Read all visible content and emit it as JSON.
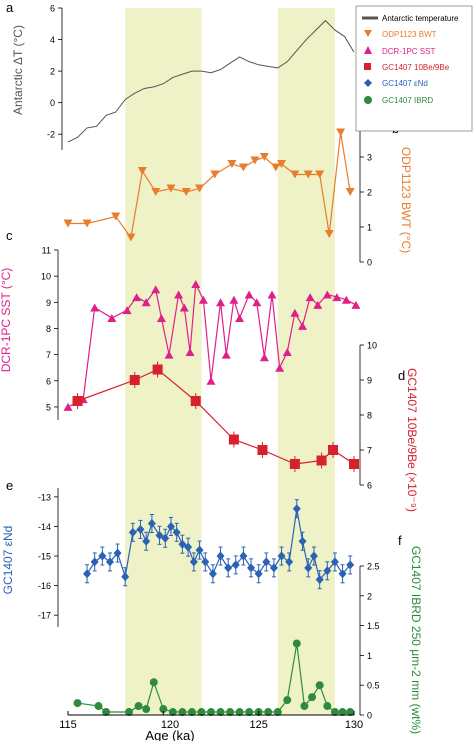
{
  "figure": {
    "xaxis": {
      "label": "Age (ka)",
      "ticks": [
        "115",
        "120",
        "125",
        "130"
      ]
    },
    "shading": [
      [
        118,
        122
      ],
      [
        126,
        129
      ]
    ],
    "panel_letters": [
      "a",
      "b",
      "c",
      "d",
      "e",
      "f"
    ],
    "legend": [
      {
        "label": "Antarctic temperature",
        "color": "#555555",
        "marker": "line"
      },
      {
        "label": "ODP1123 BWT",
        "color": "#e87d2e",
        "marker": "triangle-down"
      },
      {
        "label": "DCR-1PC SST",
        "color": "#e0208a",
        "marker": "triangle-up"
      },
      {
        "label": "GC1407 10Be/9Be",
        "color": "#d7212c",
        "marker": "square"
      },
      {
        "label": "GC1407 εNd",
        "color": "#2b62b5",
        "marker": "diamond"
      },
      {
        "label": "GC1407 IBRD",
        "color": "#2e8b3c",
        "marker": "circle"
      }
    ]
  },
  "chart_data": [
    {
      "panel": "a",
      "type": "line",
      "series_name": "Antarctic temperature",
      "ylabel": "Antarctic ΔT (°C)",
      "yticks": [
        "-2",
        "0",
        "2",
        "4",
        "6"
      ],
      "ylim": [
        -3,
        6
      ],
      "color": "#555555",
      "x": [
        115,
        115.5,
        116,
        116.5,
        117,
        117.5,
        118,
        118.5,
        119,
        119.5,
        120,
        120.5,
        121,
        121.5,
        122,
        122.5,
        123,
        123.5,
        124,
        124.5,
        125,
        125.5,
        126,
        126.5,
        127,
        127.5,
        128,
        128.5,
        129,
        129.5,
        130
      ],
      "y": [
        -2.5,
        -2.2,
        -1.6,
        -1.5,
        -0.8,
        -0.6,
        0.2,
        0.6,
        0.9,
        1.0,
        1.2,
        1.6,
        1.8,
        2.0,
        2.0,
        1.9,
        2.1,
        2.5,
        2.9,
        2.6,
        2.4,
        2.3,
        2.2,
        2.6,
        3.3,
        4.0,
        4.6,
        5.2,
        4.6,
        4.2,
        3.2
      ]
    },
    {
      "panel": "b",
      "type": "line",
      "series_name": "ODP1123 BWT",
      "ylabel": "ODP1123 BWT (°C)",
      "yticks": [
        "0",
        "1",
        "2",
        "3",
        "4"
      ],
      "ylim": [
        0,
        4
      ],
      "color": "#e87d2e",
      "x": [
        115,
        116,
        117.5,
        118.3,
        118.9,
        119.6,
        120.4,
        121.2,
        121.9,
        122.7,
        123.6,
        124.2,
        124.8,
        125.3,
        125.9,
        126.2,
        126.9,
        127.6,
        128.2,
        128.7,
        129.3,
        129.8
      ],
      "y": [
        1.1,
        1.1,
        1.3,
        0.7,
        2.6,
        2.0,
        2.1,
        2.0,
        2.1,
        2.5,
        2.8,
        2.7,
        2.9,
        3.0,
        2.7,
        2.8,
        2.5,
        2.5,
        2.5,
        0.8,
        3.7,
        2.0
      ]
    },
    {
      "panel": "c",
      "type": "line",
      "series_name": "DCR-1PC SST",
      "ylabel": "DCR-1PC SST (°C)",
      "yticks": [
        "5",
        "6",
        "7",
        "8",
        "9",
        "10",
        "11"
      ],
      "ylim": [
        4.5,
        11
      ],
      "color": "#e0208a",
      "x": [
        115,
        115.8,
        116.4,
        117.3,
        118.1,
        118.6,
        119.1,
        119.6,
        119.9,
        120.3,
        120.8,
        121.1,
        121.4,
        121.7,
        122.1,
        122.5,
        123.0,
        123.3,
        123.7,
        124.0,
        124.5,
        124.9,
        125.3,
        125.7,
        126.1,
        126.5,
        126.9,
        127.3,
        127.7,
        128.1,
        128.6,
        129.1,
        129.6,
        130.1
      ],
      "y": [
        5.0,
        5.3,
        8.8,
        8.4,
        8.7,
        9.2,
        9.0,
        9.5,
        8.4,
        7.0,
        9.3,
        8.8,
        7.1,
        9.7,
        9.1,
        6.0,
        9.0,
        7.0,
        9.1,
        8.4,
        9.3,
        9.0,
        6.9,
        9.3,
        6.5,
        7.1,
        8.6,
        8.1,
        9.2,
        8.9,
        9.3,
        9.2,
        9.1,
        8.9
      ]
    },
    {
      "panel": "d",
      "type": "line",
      "series_name": "GC1407 10Be/9Be",
      "ylabel": "GC1407 10Be/9Be (×10⁻⁹)",
      "yticks": [
        "6",
        "7",
        "8",
        "9",
        "10"
      ],
      "ylim": [
        6,
        10
      ],
      "color": "#d7212c",
      "x": [
        115.5,
        118.5,
        119.7,
        121.7,
        123.7,
        125.2,
        126.9,
        128.3,
        128.9,
        130
      ],
      "y": [
        8.4,
        9.0,
        9.3,
        8.4,
        7.3,
        7.0,
        6.6,
        6.7,
        7.0,
        6.6
      ]
    },
    {
      "panel": "e",
      "type": "line",
      "series_name": "GC1407 εNd",
      "ylabel": "GC1407 εNd",
      "yticks": [
        "-13",
        "-14",
        "-15",
        "-16",
        "-17"
      ],
      "ylim": [
        -17.4,
        -12.7
      ],
      "color": "#2b62b5",
      "x": [
        116.0,
        116.4,
        116.8,
        117.2,
        117.6,
        118.0,
        118.4,
        118.8,
        119.1,
        119.4,
        119.8,
        120.1,
        120.4,
        120.7,
        121.0,
        121.3,
        121.6,
        121.9,
        122.2,
        122.6,
        123.0,
        123.4,
        123.8,
        124.2,
        124.6,
        125.0,
        125.4,
        125.8,
        126.2,
        126.6,
        127.0,
        127.3,
        127.6,
        127.9,
        128.2,
        128.6,
        129.0,
        129.4,
        129.8
      ],
      "y": [
        -15.6,
        -15.2,
        -15.0,
        -15.2,
        -14.9,
        -15.7,
        -14.2,
        -14.1,
        -14.5,
        -13.9,
        -14.3,
        -14.4,
        -14.0,
        -14.2,
        -14.6,
        -14.7,
        -15.2,
        -14.8,
        -15.2,
        -15.6,
        -15.0,
        -15.4,
        -15.3,
        -15.0,
        -15.4,
        -15.6,
        -15.2,
        -15.4,
        -15.0,
        -15.2,
        -13.4,
        -14.5,
        -15.4,
        -15.0,
        -15.8,
        -15.5,
        -15.2,
        -15.6,
        -15.3
      ]
    },
    {
      "panel": "f",
      "type": "line",
      "series_name": "GC1407 IBRD",
      "ylabel": "GC1407 IBRD 250 μm-2 mm (wt%)",
      "yticks": [
        "0",
        "0.5",
        "1",
        "1.5",
        "2",
        "2.5"
      ],
      "ylim": [
        0,
        2.5
      ],
      "color": "#2e8b3c",
      "x": [
        115.5,
        116.6,
        117.0,
        118.2,
        118.7,
        119.1,
        119.5,
        120.0,
        120.5,
        121.0,
        121.5,
        122.0,
        122.5,
        123.0,
        123.5,
        124.0,
        124.5,
        125.0,
        125.5,
        126.0,
        126.5,
        127.0,
        127.4,
        127.8,
        128.2,
        128.6,
        129.0,
        129.4,
        129.8
      ],
      "y": [
        0.2,
        0.15,
        0.05,
        0.05,
        0.15,
        0.1,
        0.55,
        0.1,
        0.05,
        0.05,
        0.05,
        0.05,
        0.05,
        0.05,
        0.05,
        0.05,
        0.05,
        0.05,
        0.05,
        0.05,
        0.25,
        1.2,
        0.15,
        0.3,
        0.5,
        0.15,
        0.05,
        0.05,
        0.05
      ]
    }
  ]
}
